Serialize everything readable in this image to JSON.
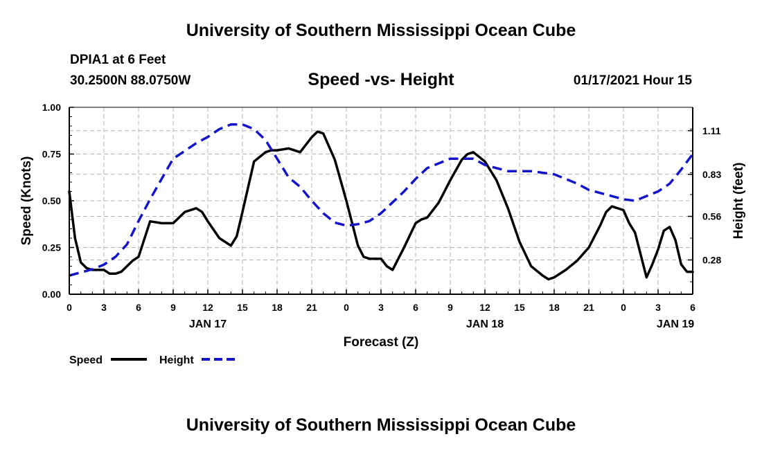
{
  "header": {
    "title": "University of Southern Mississippi Ocean Cube",
    "station": "DPIA1 at 6 Feet",
    "coords": "30.2500N 88.0750W",
    "timestamp": "01/17/2021 Hour 15"
  },
  "footer": {
    "title": "University of Southern Mississippi Ocean Cube"
  },
  "chart_data": {
    "type": "line",
    "title": "Speed -vs- Height",
    "xlabel": "Forecast (Z)",
    "ylabel_left": "Speed (Knots)",
    "ylabel_right": "Height (feet)",
    "x_range": [
      0,
      54
    ],
    "ylim_left": [
      0,
      1.0
    ],
    "ylim_right": [
      0.06,
      1.26
    ],
    "grid": true,
    "legend_position": "bottom-left",
    "x_tick_positions": [
      0,
      3,
      6,
      9,
      12,
      15,
      18,
      21,
      24,
      27,
      30,
      33,
      36,
      39,
      42,
      45,
      48,
      51,
      54
    ],
    "x_tick_labels": [
      "0",
      "3",
      "6",
      "9",
      "12",
      "15",
      "18",
      "21",
      "0",
      "3",
      "6",
      "9",
      "12",
      "15",
      "18",
      "21",
      "0",
      "3",
      "6"
    ],
    "day_labels": [
      {
        "x": 12,
        "label": "JAN 17"
      },
      {
        "x": 36,
        "label": "JAN 18"
      },
      {
        "x": 52.5,
        "label": "JAN 19"
      }
    ],
    "y_left_ticks": [
      {
        "v": 0.0,
        "label": "0.00"
      },
      {
        "v": 0.25,
        "label": "0.25"
      },
      {
        "v": 0.5,
        "label": "0.50"
      },
      {
        "v": 0.75,
        "label": "0.75"
      },
      {
        "v": 1.0,
        "label": "1.00"
      }
    ],
    "y_right_ticks": [
      {
        "v": 0.28,
        "label": "0.28"
      },
      {
        "v": 0.56,
        "label": "0.56"
      },
      {
        "v": 0.83,
        "label": "0.83"
      },
      {
        "v": 1.11,
        "label": "1.11"
      }
    ],
    "series": [
      {
        "name": "Speed",
        "axis": "left",
        "color": "#000000",
        "dash": "solid",
        "x": [
          0,
          0.5,
          1,
          1.5,
          2,
          3,
          3.5,
          4,
          4.5,
          5,
          5.5,
          6,
          7,
          8,
          9,
          10,
          11,
          11.5,
          12,
          13,
          14,
          14.5,
          15,
          16,
          17,
          17.5,
          18,
          19,
          20,
          21,
          21.5,
          22,
          23,
          24,
          25,
          25.5,
          26,
          27,
          27.5,
          28,
          29,
          30,
          30.5,
          31,
          32,
          33,
          34,
          34.5,
          35,
          36,
          37,
          38,
          39,
          40,
          41,
          41.5,
          42,
          43,
          44,
          45,
          46,
          46.5,
          47,
          48,
          48.5,
          49,
          50,
          50.5,
          51,
          51.5,
          52,
          52.5,
          53,
          53.5,
          54
        ],
        "values": [
          0.55,
          0.3,
          0.17,
          0.14,
          0.13,
          0.13,
          0.11,
          0.11,
          0.12,
          0.15,
          0.18,
          0.2,
          0.39,
          0.38,
          0.38,
          0.44,
          0.46,
          0.44,
          0.39,
          0.3,
          0.26,
          0.31,
          0.44,
          0.71,
          0.76,
          0.77,
          0.77,
          0.78,
          0.76,
          0.84,
          0.87,
          0.86,
          0.72,
          0.5,
          0.26,
          0.2,
          0.19,
          0.19,
          0.15,
          0.13,
          0.25,
          0.38,
          0.4,
          0.41,
          0.49,
          0.61,
          0.72,
          0.75,
          0.76,
          0.71,
          0.61,
          0.46,
          0.28,
          0.15,
          0.1,
          0.08,
          0.09,
          0.13,
          0.18,
          0.25,
          0.37,
          0.44,
          0.47,
          0.45,
          0.38,
          0.33,
          0.09,
          0.16,
          0.24,
          0.34,
          0.36,
          0.29,
          0.16,
          0.12,
          0.12
        ]
      },
      {
        "name": "Height",
        "axis": "right",
        "color": "#1414c8",
        "dash": "dashed",
        "x": [
          0,
          1,
          2,
          3,
          4,
          5,
          6,
          7,
          8,
          9,
          10,
          11,
          12,
          13,
          14,
          15,
          16,
          17,
          18,
          19,
          20,
          21,
          22,
          23,
          24,
          25,
          26,
          27,
          28,
          29,
          30,
          31,
          32,
          33,
          34,
          35,
          36,
          37,
          38,
          39,
          40,
          41,
          42,
          43,
          44,
          45,
          46,
          47,
          48,
          49,
          50,
          51,
          52,
          53,
          54
        ],
        "values": [
          0.18,
          0.2,
          0.22,
          0.25,
          0.3,
          0.38,
          0.53,
          0.67,
          0.8,
          0.93,
          0.98,
          1.03,
          1.07,
          1.12,
          1.15,
          1.15,
          1.12,
          1.05,
          0.93,
          0.81,
          0.75,
          0.66,
          0.58,
          0.52,
          0.5,
          0.51,
          0.53,
          0.58,
          0.65,
          0.72,
          0.8,
          0.87,
          0.9,
          0.93,
          0.93,
          0.93,
          0.89,
          0.87,
          0.85,
          0.85,
          0.85,
          0.84,
          0.83,
          0.8,
          0.77,
          0.73,
          0.71,
          0.69,
          0.67,
          0.66,
          0.69,
          0.72,
          0.77,
          0.86,
          0.96
        ]
      }
    ]
  }
}
